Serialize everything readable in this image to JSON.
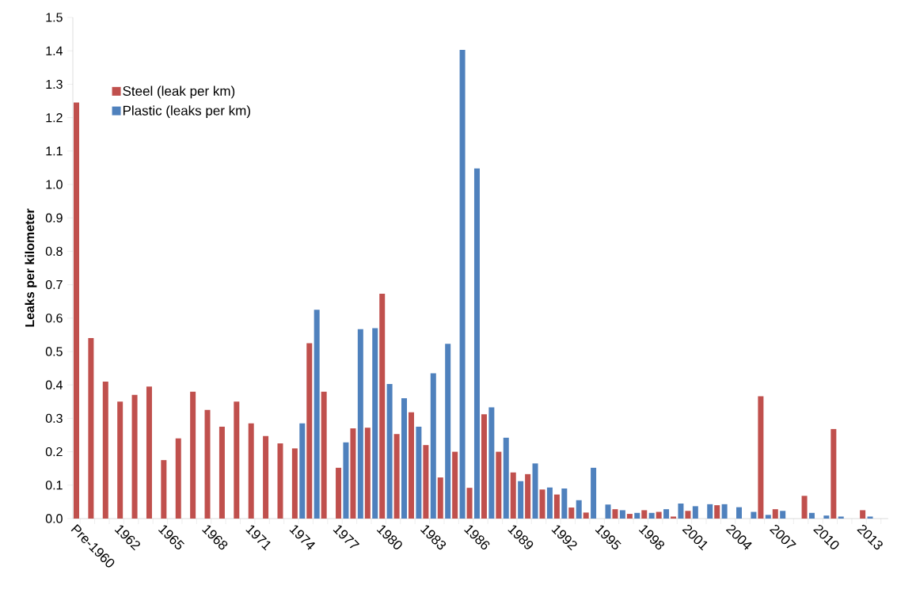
{
  "chart_data": {
    "type": "bar",
    "ylabel": "Leaks per kilometer",
    "categories": [
      "Pre-1960",
      null,
      null,
      "1962",
      null,
      null,
      "1965",
      null,
      null,
      "1968",
      null,
      null,
      "1971",
      null,
      null,
      "1974",
      null,
      null,
      "1977",
      null,
      null,
      "1980",
      null,
      null,
      "1983",
      null,
      null,
      "1986",
      null,
      null,
      "1989",
      null,
      null,
      "1992",
      null,
      null,
      "1995",
      null,
      null,
      "1998",
      null,
      null,
      "2001",
      null,
      null,
      "2004",
      null,
      null,
      "2007",
      null,
      null,
      "2010",
      null,
      null,
      "2013",
      null
    ],
    "series": [
      {
        "name": "Steel (leak per km)",
        "color": "#c0504d",
        "values": [
          1.245,
          0.54,
          0.41,
          0.35,
          0.37,
          0.395,
          0.175,
          0.24,
          0.38,
          0.325,
          0.275,
          0.35,
          0.285,
          0.247,
          0.225,
          0.21,
          0.525,
          0.38,
          0.152,
          0.27,
          0.272,
          0.673,
          0.253,
          0.318,
          0.22,
          0.123,
          0.2,
          0.092,
          0.312,
          0.2,
          0.138,
          0.133,
          0.087,
          0.072,
          0.033,
          0.018,
          null,
          0.028,
          0.014,
          0.025,
          0.02,
          0.006,
          0.023,
          null,
          0.04,
          null,
          null,
          0.366,
          0.028,
          null,
          0.068,
          null,
          0.268,
          null,
          0.025,
          null
        ]
      },
      {
        "name": "Plastic (leaks per km)",
        "color": "#4f81bd",
        "values": [
          null,
          null,
          null,
          null,
          null,
          null,
          null,
          null,
          null,
          null,
          null,
          null,
          null,
          null,
          null,
          0.285,
          0.625,
          null,
          0.228,
          0.567,
          0.57,
          0.403,
          0.36,
          0.275,
          0.435,
          0.523,
          1.403,
          1.048,
          0.333,
          0.242,
          0.112,
          0.165,
          0.093,
          0.09,
          0.055,
          0.152,
          0.042,
          0.025,
          0.017,
          0.017,
          0.028,
          0.045,
          0.037,
          0.043,
          0.043,
          0.034,
          0.02,
          0.011,
          0.023,
          null,
          0.017,
          0.009,
          0.006,
          null,
          0.006,
          null
        ]
      }
    ],
    "ylim": [
      0,
      1.5
    ],
    "yticks": [
      {
        "value": 0,
        "label": "0.0"
      },
      {
        "value": 0.1,
        "label": "0.1"
      },
      {
        "value": 0.2,
        "label": "0.2"
      },
      {
        "value": 0.3,
        "label": "0.3"
      },
      {
        "value": 0.4,
        "label": "0.4"
      },
      {
        "value": 0.5,
        "label": "0.5"
      },
      {
        "value": 0.6,
        "label": "0.6"
      },
      {
        "value": 0.7,
        "label": "0.7"
      },
      {
        "value": 0.8,
        "label": "0.8"
      },
      {
        "value": 0.9,
        "label": "0.9"
      },
      {
        "value": 1.0,
        "label": "1.0"
      },
      {
        "value": 1.1,
        "label": "1.1"
      },
      {
        "value": 1.2,
        "label": "1.2"
      },
      {
        "value": 1.3,
        "label": "1.3"
      },
      {
        "value": 1.4,
        "label": "1.4"
      },
      {
        "value": 1.5,
        "label": "1.5"
      }
    ],
    "legend": "top left"
  }
}
